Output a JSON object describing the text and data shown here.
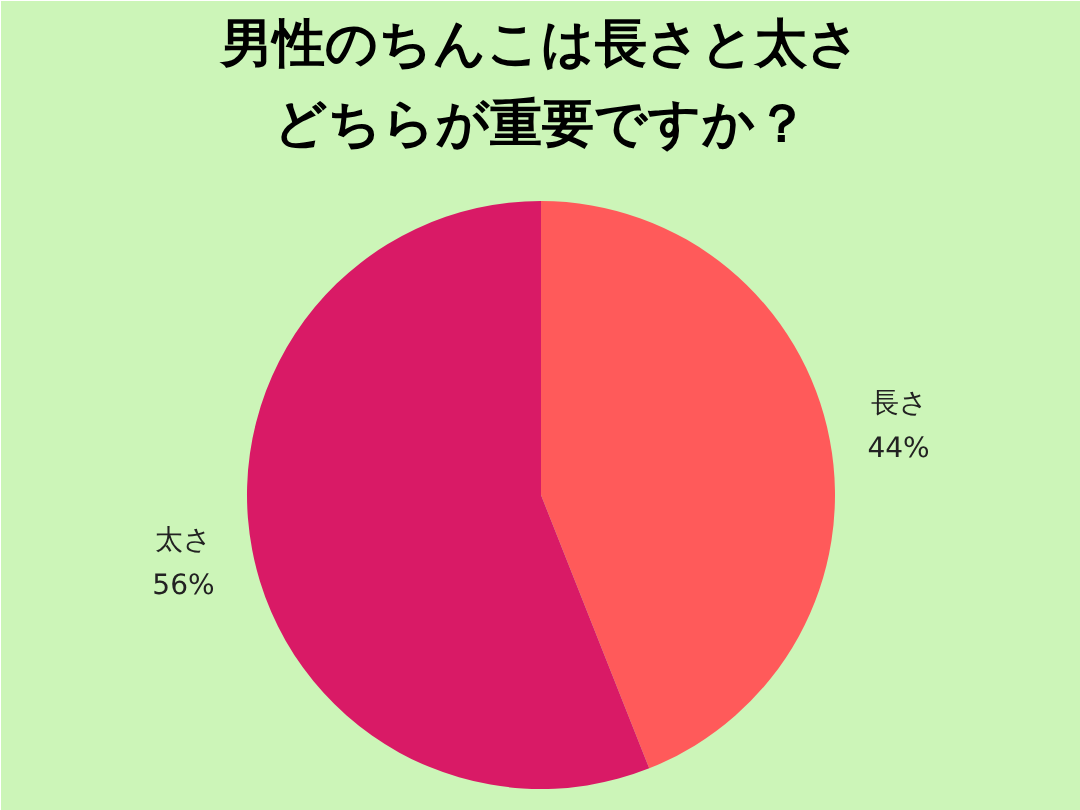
{
  "chart_data": {
    "type": "pie",
    "title": "男性のちんこは長さと太さ",
    "subtitle": "どちらが重要ですか？",
    "categories": [
      "長さ",
      "太さ"
    ],
    "values": [
      44,
      56
    ],
    "colors": [
      "#ff5a5a",
      "#d91a66"
    ],
    "value_labels": [
      "44%",
      "56%"
    ]
  }
}
